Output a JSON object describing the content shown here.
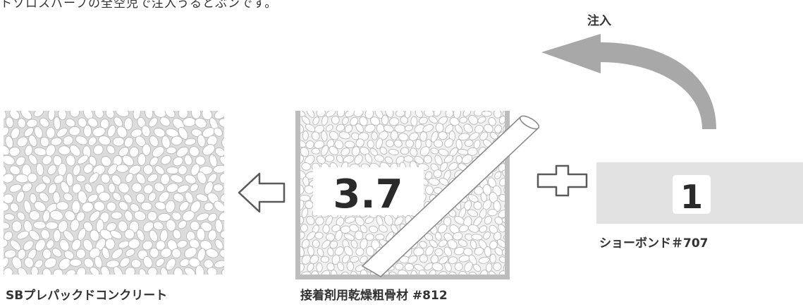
{
  "intro_text": "トゾロスパープの全空児で注入うるとぶンです。",
  "inject_label": "注入",
  "mix_ratio": {
    "aggregate": "3.7",
    "bond": "1"
  },
  "products": {
    "result_label": "SBプレパックドコンクリート",
    "aggregate_label": "接着剤用乾燥粗骨材 #812",
    "bond_label": "ショーボンド＃707"
  },
  "colors": {
    "box_bg": "#dcdcdc",
    "stone_fill": "#ffffff",
    "stone_stroke": "#b9b9b9",
    "bond_panel": "#e2e2e2",
    "arrow_gray": "#a8a8a8",
    "outline": "#5a5a5a"
  },
  "icons": {
    "result_arrow": "left-arrow-icon",
    "plus": "plus-icon",
    "pour": "curved-arrow-icon",
    "pipe": "injection-pipe-icon"
  }
}
